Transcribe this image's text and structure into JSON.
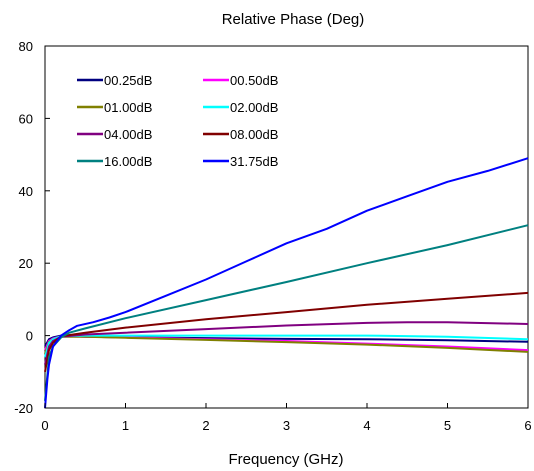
{
  "chart_data": {
    "type": "line",
    "title": "Relative Phase (Deg)",
    "xlabel": "Frequency (GHz)",
    "ylabel": "",
    "xlim": [
      0,
      6
    ],
    "ylim": [
      -20,
      80
    ],
    "xticks": [
      "0",
      "1",
      "2",
      "3",
      "4",
      "5",
      "6"
    ],
    "yticks": [
      "-20",
      "0",
      "20",
      "40",
      "60",
      "80"
    ],
    "grid": false,
    "legend": "top-left",
    "series": [
      {
        "name": "00.25dB",
        "color": "#000080",
        "x": [
          0,
          0.05,
          0.1,
          0.2,
          0.5,
          1,
          2,
          3,
          4,
          5,
          6
        ],
        "y": [
          -3,
          -1,
          -0.5,
          0,
          -0.3,
          -0.5,
          -0.7,
          -0.9,
          -1.0,
          -1.3,
          -1.7
        ]
      },
      {
        "name": "00.50dB",
        "color": "#ff00ff",
        "x": [
          0,
          0.05,
          0.1,
          0.2,
          0.5,
          1,
          2,
          3,
          4,
          5,
          6
        ],
        "y": [
          -4,
          -1.5,
          -0.8,
          -0.2,
          -0.3,
          -0.5,
          -1.0,
          -1.5,
          -2.2,
          -3.0,
          -4.0
        ]
      },
      {
        "name": "01.00dB",
        "color": "#808000",
        "x": [
          0,
          0.05,
          0.1,
          0.2,
          0.5,
          1,
          2,
          3,
          4,
          5,
          6
        ],
        "y": [
          -5,
          -1.8,
          -1.0,
          -0.3,
          -0.3,
          -0.6,
          -1.2,
          -1.8,
          -2.5,
          -3.4,
          -4.5
        ]
      },
      {
        "name": "02.00dB",
        "color": "#00ffff",
        "x": [
          0,
          0.05,
          0.1,
          0.2,
          0.5,
          1,
          2,
          3,
          4,
          5,
          6
        ],
        "y": [
          -6,
          -2,
          -1,
          -0.2,
          0,
          0,
          0,
          0,
          0,
          -0.3,
          -1.0
        ]
      },
      {
        "name": "04.00dB",
        "color": "#800080",
        "x": [
          0,
          0.05,
          0.1,
          0.2,
          0.5,
          1,
          2,
          3,
          4,
          4.5,
          5,
          6
        ],
        "y": [
          -8,
          -3,
          -1.5,
          -0.3,
          0.3,
          0.8,
          1.8,
          2.8,
          3.5,
          3.7,
          3.7,
          3.2
        ]
      },
      {
        "name": "08.00dB",
        "color": "#800000",
        "x": [
          0,
          0.05,
          0.1,
          0.2,
          0.5,
          1,
          2,
          3,
          4,
          5,
          6
        ],
        "y": [
          -10,
          -4,
          -2,
          -0.2,
          0.8,
          2.2,
          4.5,
          6.5,
          8.5,
          10.2,
          11.8
        ]
      },
      {
        "name": "16.00dB",
        "color": "#008080",
        "x": [
          0,
          0.05,
          0.1,
          0.2,
          0.3,
          0.5,
          1,
          2,
          3,
          4,
          5,
          6
        ],
        "y": [
          -18,
          -6,
          -3,
          -0.5,
          0.8,
          2,
          4.8,
          9.8,
          14.8,
          20,
          25,
          30.5
        ]
      },
      {
        "name": "31.75dB",
        "color": "#0000ff",
        "x": [
          0,
          0.03,
          0.05,
          0.1,
          0.2,
          0.3,
          0.4,
          0.6,
          0.8,
          1,
          1.5,
          2,
          2.5,
          3,
          3.5,
          4,
          4.5,
          5,
          5.5,
          6
        ],
        "y": [
          -20,
          -12,
          -8,
          -3,
          0,
          1.5,
          2.7,
          3.7,
          5,
          6.5,
          11,
          15.5,
          20.5,
          25.5,
          29.5,
          34.5,
          38.5,
          42.5,
          45.5,
          49
        ]
      }
    ]
  }
}
